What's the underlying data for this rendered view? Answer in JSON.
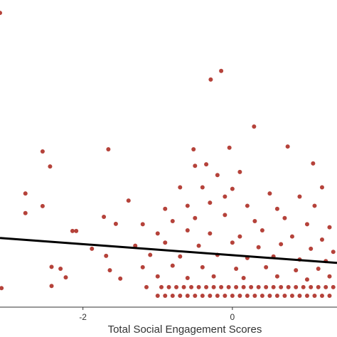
{
  "chart_data": {
    "type": "scatter",
    "x_label": "Total Social Engagement Scores",
    "xlim": [
      -3.11,
      1.4
    ],
    "ylim": [
      0,
      10
    ],
    "xticks": [
      -2,
      0
    ],
    "color": "#b5423a",
    "x": [
      -3.11,
      -0.29,
      -0.15,
      0.29,
      0.74,
      -0.04,
      -0.52,
      -1.66,
      -2.54,
      1.08,
      -2.44,
      -2.77,
      -2.54,
      -2.77,
      -3.09,
      -2.42,
      -2.3,
      -2.23,
      -2.42,
      -1.72,
      -1.39,
      -1.56,
      -2.14,
      -2.09,
      -1.88,
      -1.69,
      -1.64,
      -1.5,
      -0.5,
      -0.35,
      -0.2,
      0.1,
      -0.7,
      -0.4,
      0.0,
      -0.1,
      0.5,
      0.9,
      1.2,
      -0.6,
      -0.3,
      0.2,
      0.6,
      1.1,
      -0.9,
      -1.2,
      -0.8,
      -0.5,
      -0.1,
      0.3,
      0.7,
      1.0,
      1.3,
      -1.0,
      -0.6,
      -0.3,
      0.1,
      0.4,
      0.8,
      1.2,
      -1.3,
      -0.9,
      -0.45,
      0.0,
      0.35,
      0.65,
      1.05,
      1.35,
      -1.1,
      -0.7,
      -0.2,
      0.2,
      0.55,
      0.9,
      1.25,
      -1.2,
      -0.8,
      -0.4,
      0.05,
      0.45,
      0.85,
      1.15,
      -1.0,
      -0.6,
      -0.25,
      0.15,
      0.6,
      1.0,
      1.3,
      -1.0,
      -0.9,
      -0.8,
      -0.7,
      -0.6,
      -0.5,
      -0.4,
      -0.3,
      -0.2,
      -0.1,
      0.0,
      0.1,
      0.2,
      0.3,
      0.4,
      0.5,
      0.6,
      0.7,
      0.8,
      0.9,
      1.0,
      1.1,
      1.2,
      1.3,
      -1.15,
      -0.95,
      -0.85,
      -0.75,
      -0.65,
      -0.55,
      -0.45,
      -0.35,
      -0.25,
      -0.15,
      -0.05,
      0.05,
      0.15,
      0.25,
      0.35,
      0.45,
      0.55,
      0.65,
      0.75,
      0.85,
      0.95,
      1.05,
      1.15,
      1.25,
      1.35
    ],
    "y": [
      9.58,
      7.41,
      7.69,
      5.88,
      5.23,
      5.19,
      5.14,
      5.14,
      5.07,
      4.68,
      4.58,
      3.7,
      3.29,
      3.06,
      0.62,
      1.31,
      1.25,
      0.97,
      0.69,
      2.94,
      3.47,
      2.71,
      2.48,
      2.48,
      1.9,
      1.67,
      1.2,
      0.93,
      4.6,
      4.65,
      4.3,
      4.4,
      3.9,
      3.9,
      3.85,
      3.6,
      3.7,
      3.6,
      3.9,
      3.3,
      3.4,
      3.3,
      3.2,
      3.3,
      3.2,
      2.7,
      2.8,
      2.9,
      3.0,
      2.8,
      2.9,
      2.7,
      2.6,
      2.4,
      2.5,
      2.4,
      2.3,
      2.5,
      2.3,
      2.2,
      2.0,
      2.1,
      2.0,
      2.1,
      1.95,
      2.05,
      1.9,
      1.8,
      1.7,
      1.65,
      1.7,
      1.6,
      1.65,
      1.55,
      1.5,
      1.3,
      1.35,
      1.3,
      1.25,
      1.3,
      1.2,
      1.25,
      1.0,
      0.95,
      1.0,
      0.95,
      1.0,
      0.9,
      1.0,
      0.37,
      0.37,
      0.37,
      0.37,
      0.37,
      0.37,
      0.37,
      0.37,
      0.37,
      0.37,
      0.37,
      0.37,
      0.37,
      0.37,
      0.37,
      0.37,
      0.37,
      0.37,
      0.37,
      0.37,
      0.37,
      0.37,
      0.37,
      0.37,
      0.65,
      0.65,
      0.65,
      0.65,
      0.65,
      0.65,
      0.65,
      0.65,
      0.65,
      0.65,
      0.65,
      0.65,
      0.65,
      0.65,
      0.65,
      0.65,
      0.65,
      0.65,
      0.65,
      0.65,
      0.65,
      0.65,
      0.65,
      0.65,
      0.65
    ],
    "fit_line": {
      "x": [
        -3.11,
        1.4
      ],
      "y": [
        2.25,
        1.44
      ],
      "color": "#000000"
    }
  }
}
